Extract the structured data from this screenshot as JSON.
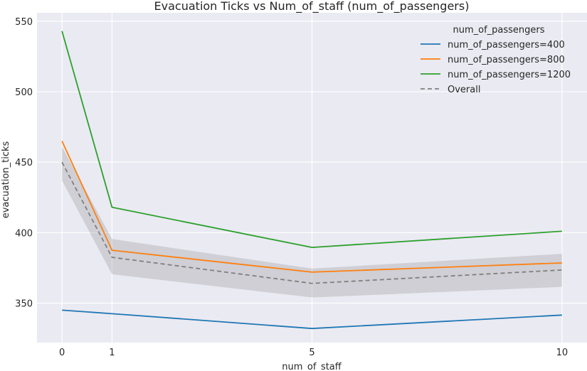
{
  "chart_data": {
    "type": "line",
    "title": "Evacuation Ticks vs Num_of_staff (num_of_passengers)",
    "xlabel": "num_of_staff",
    "ylabel": "evacuation_ticks",
    "x": [
      0,
      1,
      5,
      10
    ],
    "xticks": [
      "0",
      "1",
      "5",
      "10"
    ],
    "yticks": [
      "350",
      "400",
      "450",
      "500",
      "550"
    ],
    "xlim": [
      -0.5,
      10.5
    ],
    "ylim": [
      322,
      556
    ],
    "grid": true,
    "legend": {
      "title": "num_of_passengers",
      "placement": "top-right"
    },
    "series": [
      {
        "name": "num_of_passengers=400",
        "color": "#1f77b4",
        "values": [
          345,
          342.5,
          332,
          341.5
        ],
        "style": "solid"
      },
      {
        "name": "num_of_passengers=800",
        "color": "#ff7f0e",
        "values": [
          465,
          387.5,
          372,
          378.5
        ],
        "style": "solid"
      },
      {
        "name": "num_of_passengers=1200",
        "color": "#2ca02c",
        "values": [
          543,
          418,
          389.5,
          401
        ],
        "style": "solid"
      },
      {
        "name": "Overall",
        "color": "#808080",
        "values": [
          450,
          382.5,
          364,
          373.5
        ],
        "style": "dashed",
        "ci_lower": [
          437,
          370.5,
          354,
          361.5
        ],
        "ci_upper": [
          461,
          395.5,
          374.5,
          385
        ]
      }
    ]
  }
}
